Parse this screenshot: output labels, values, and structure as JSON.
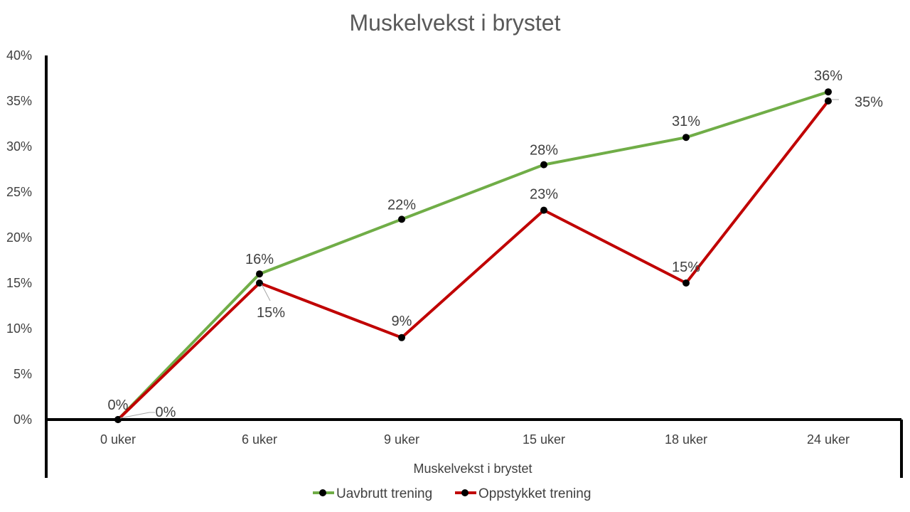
{
  "chart_data": {
    "type": "line",
    "title": "Muskelvekst i brystet",
    "xlabel": "Muskelvekst i brystet",
    "ylabel": "",
    "categories": [
      "0 uker",
      "6 uker",
      "9 uker",
      "15 uker",
      "18 uker",
      "24 uker"
    ],
    "y_ticks": [
      "0%",
      "5%",
      "10%",
      "15%",
      "20%",
      "25%",
      "30%",
      "35%",
      "40%"
    ],
    "ylim": [
      0,
      40
    ],
    "grid": false,
    "legend_position": "bottom",
    "series": [
      {
        "name": "Uavbrutt trening",
        "color": "#70ad47",
        "values": [
          0,
          16,
          22,
          28,
          31,
          36
        ],
        "labels": [
          "0%",
          "16%",
          "22%",
          "28%",
          "31%",
          "36%"
        ]
      },
      {
        "name": "Oppstykket trening",
        "color": "#c00000",
        "values": [
          0,
          15,
          9,
          23,
          15,
          35
        ],
        "labels": [
          "0%",
          "15%",
          "9%",
          "23%",
          "15%",
          "35%"
        ]
      }
    ]
  }
}
